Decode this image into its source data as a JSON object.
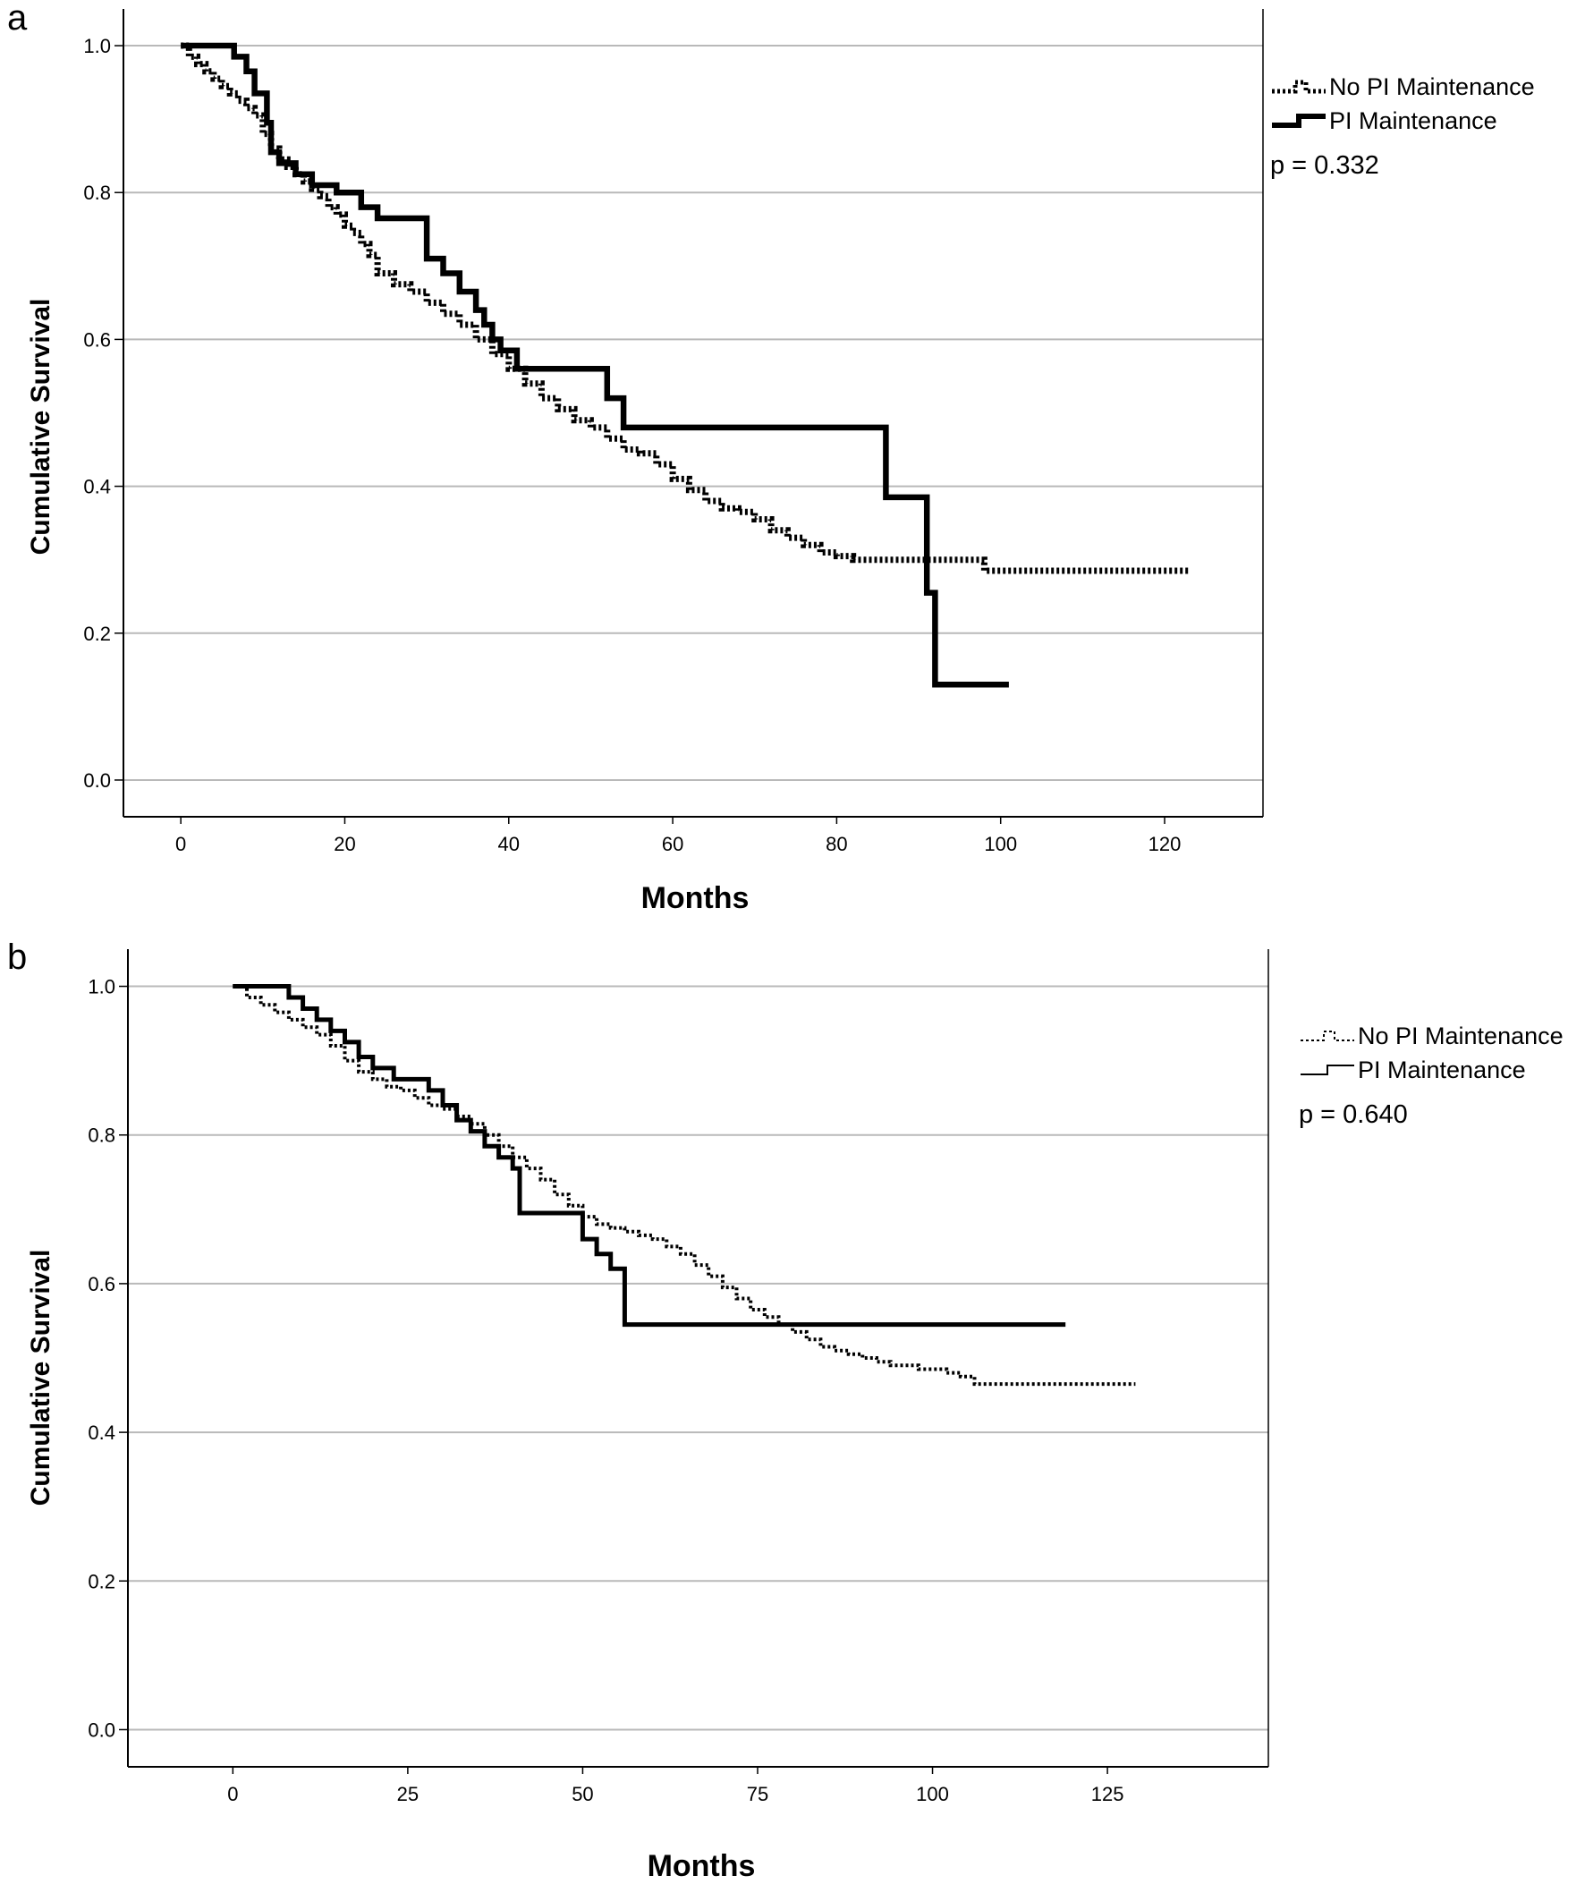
{
  "chart_data": [
    {
      "panel_label": "a",
      "type": "line",
      "step": true,
      "xlabel": "Months",
      "ylabel": "Cumulative Survival",
      "xlim": [
        -7,
        132
      ],
      "ylim": [
        -0.05,
        1.05
      ],
      "xticks": [
        0,
        20,
        40,
        60,
        80,
        100,
        120
      ],
      "yticks": [
        0.0,
        0.2,
        0.4,
        0.6,
        0.8,
        1.0
      ],
      "grid": "horizontal",
      "legend_position": "top-right",
      "annotation": "p = 0.332",
      "series": [
        {
          "name": "No PI Maintenance",
          "style": "dotted",
          "x": [
            0,
            1,
            2,
            3,
            4,
            5,
            6,
            7,
            8,
            9,
            10,
            11,
            12,
            13,
            14,
            15,
            16,
            17,
            18,
            19,
            20,
            21,
            22,
            23,
            24,
            26,
            28,
            30,
            32,
            34,
            36,
            38,
            40,
            42,
            44,
            46,
            48,
            50,
            52,
            54,
            56,
            58,
            60,
            62,
            64,
            66,
            68,
            70,
            72,
            74,
            76,
            78,
            80,
            82,
            84,
            86,
            88,
            90,
            92,
            94,
            96,
            98,
            123
          ],
          "y": [
            1.0,
            0.985,
            0.975,
            0.965,
            0.955,
            0.945,
            0.935,
            0.925,
            0.915,
            0.905,
            0.88,
            0.86,
            0.845,
            0.835,
            0.825,
            0.815,
            0.805,
            0.795,
            0.78,
            0.77,
            0.755,
            0.745,
            0.73,
            0.715,
            0.69,
            0.675,
            0.665,
            0.65,
            0.635,
            0.62,
            0.6,
            0.58,
            0.56,
            0.54,
            0.52,
            0.505,
            0.49,
            0.48,
            0.465,
            0.45,
            0.445,
            0.43,
            0.41,
            0.395,
            0.38,
            0.37,
            0.365,
            0.355,
            0.34,
            0.33,
            0.32,
            0.31,
            0.305,
            0.3,
            0.3,
            0.3,
            0.3,
            0.3,
            0.3,
            0.3,
            0.3,
            0.285,
            0.285
          ]
        },
        {
          "name": "PI Maintenance",
          "style": "solid",
          "x": [
            0,
            6.5,
            8,
            9,
            10.5,
            11,
            12,
            14,
            16,
            19,
            22,
            24,
            30,
            32,
            34,
            36,
            37,
            38,
            39,
            41,
            46,
            52,
            54,
            86,
            90,
            91,
            92,
            101
          ],
          "y": [
            1.0,
            0.985,
            0.965,
            0.935,
            0.895,
            0.855,
            0.84,
            0.825,
            0.81,
            0.8,
            0.78,
            0.765,
            0.71,
            0.69,
            0.665,
            0.64,
            0.62,
            0.6,
            0.585,
            0.56,
            0.56,
            0.52,
            0.48,
            0.385,
            0.385,
            0.255,
            0.13,
            0.13
          ]
        }
      ]
    },
    {
      "panel_label": "b",
      "type": "line",
      "step": true,
      "xlabel": "Months",
      "ylabel": "Cumulative Survival",
      "xlim": [
        -15,
        148
      ],
      "ylim": [
        -0.05,
        1.05
      ],
      "xticks": [
        0,
        25,
        50,
        75,
        100,
        125
      ],
      "yticks": [
        0.0,
        0.2,
        0.4,
        0.6,
        0.8,
        1.0
      ],
      "grid": "horizontal",
      "legend_position": "top-right",
      "annotation": "p = 0.640",
      "series": [
        {
          "name": "No PI Maintenance",
          "style": "dotted",
          "x": [
            0,
            2,
            4,
            6,
            8,
            10,
            12,
            14,
            16,
            18,
            20,
            22,
            24,
            26,
            28,
            30,
            32,
            34,
            36,
            38,
            40,
            42,
            44,
            46,
            48,
            50,
            52,
            54,
            56,
            58,
            60,
            62,
            64,
            66,
            68,
            70,
            72,
            74,
            76,
            78,
            80,
            82,
            84,
            86,
            88,
            90,
            92,
            94,
            96,
            98,
            100,
            102,
            104,
            106,
            129
          ],
          "y": [
            1.0,
            0.985,
            0.975,
            0.965,
            0.955,
            0.945,
            0.935,
            0.92,
            0.9,
            0.885,
            0.875,
            0.865,
            0.86,
            0.85,
            0.84,
            0.835,
            0.825,
            0.815,
            0.8,
            0.785,
            0.77,
            0.755,
            0.74,
            0.72,
            0.705,
            0.69,
            0.68,
            0.675,
            0.67,
            0.665,
            0.66,
            0.65,
            0.64,
            0.625,
            0.61,
            0.595,
            0.58,
            0.565,
            0.555,
            0.545,
            0.535,
            0.525,
            0.515,
            0.51,
            0.505,
            0.5,
            0.495,
            0.49,
            0.49,
            0.485,
            0.485,
            0.48,
            0.475,
            0.465,
            0.465
          ]
        },
        {
          "name": "PI Maintenance",
          "style": "solid",
          "x": [
            0,
            8,
            10,
            12,
            14,
            16,
            18,
            20,
            23,
            28,
            30,
            32,
            34,
            36,
            38,
            40,
            41,
            46,
            50,
            52,
            54,
            56,
            119
          ],
          "y": [
            1.0,
            0.985,
            0.97,
            0.955,
            0.94,
            0.925,
            0.905,
            0.89,
            0.875,
            0.86,
            0.84,
            0.82,
            0.805,
            0.785,
            0.77,
            0.755,
            0.695,
            0.695,
            0.66,
            0.64,
            0.62,
            0.545,
            0.545
          ]
        }
      ]
    }
  ]
}
